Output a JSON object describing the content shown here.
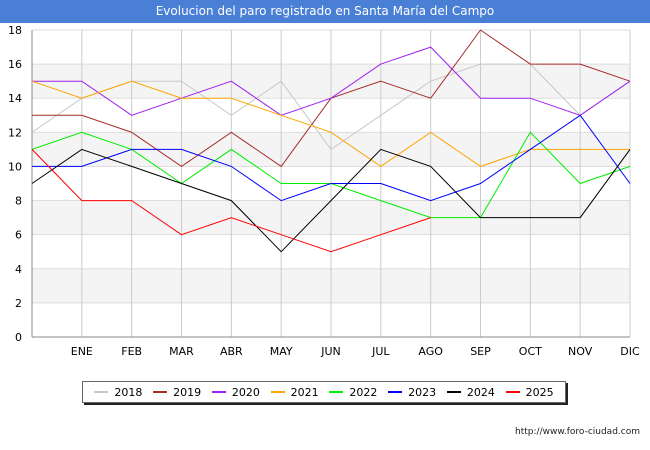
{
  "header": {
    "title": "Evolucion del paro registrado en Santa María del Campo"
  },
  "footer": {
    "url": "http://www.foro-ciudad.com"
  },
  "chart_data": {
    "type": "line",
    "title": "Evolucion del paro registrado en Santa María del Campo",
    "xlabel": "",
    "ylabel": "",
    "categories": [
      "",
      "ENE",
      "FEB",
      "MAR",
      "ABR",
      "MAY",
      "JUN",
      "JUL",
      "AGO",
      "SEP",
      "OCT",
      "NOV",
      "DIC"
    ],
    "ylim": [
      0,
      18
    ],
    "yticks": [
      0,
      2,
      4,
      6,
      8,
      10,
      12,
      14,
      16,
      18
    ],
    "grid": true,
    "legend_position": "bottom",
    "series": [
      {
        "name": "2018",
        "color": "#c8c8c8",
        "values": [
          12,
          14,
          15,
          15,
          13,
          15,
          11,
          13,
          15,
          16,
          16,
          13,
          15
        ]
      },
      {
        "name": "2019",
        "color": "#a52a2a",
        "values": [
          13,
          13,
          12,
          10,
          12,
          10,
          14,
          15,
          14,
          18,
          16,
          16,
          15
        ]
      },
      {
        "name": "2020",
        "color": "#a020f0",
        "values": [
          15,
          15,
          13,
          14,
          15,
          13,
          14,
          16,
          17,
          14,
          14,
          13,
          15
        ]
      },
      {
        "name": "2021",
        "color": "#ffa500",
        "values": [
          15,
          14,
          15,
          14,
          14,
          13,
          12,
          10,
          12,
          10,
          11,
          11,
          11
        ]
      },
      {
        "name": "2022",
        "color": "#00ee00",
        "values": [
          11,
          12,
          11,
          9,
          11,
          9,
          9,
          8,
          7,
          7,
          12,
          9,
          10
        ]
      },
      {
        "name": "2023",
        "color": "#0000ff",
        "values": [
          10,
          10,
          11,
          11,
          10,
          8,
          9,
          9,
          8,
          9,
          11,
          13,
          9
        ]
      },
      {
        "name": "2024",
        "color": "#000000",
        "values": [
          9,
          11,
          10,
          9,
          8,
          5,
          8,
          11,
          10,
          7,
          7,
          7,
          11
        ]
      },
      {
        "name": "2025",
        "color": "#ff0000",
        "values": [
          11,
          8,
          8,
          6,
          7,
          6,
          5,
          6,
          7,
          null,
          null,
          null,
          null
        ]
      }
    ]
  }
}
